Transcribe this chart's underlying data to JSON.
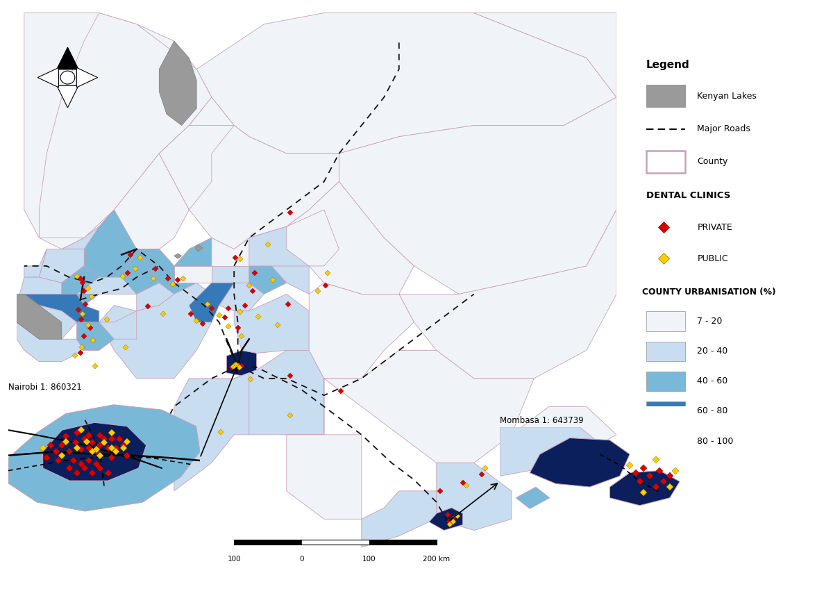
{
  "background_color": "#ffffff",
  "legend": {
    "title": "Legend",
    "kenyan_lakes_color": "#9a9a9a",
    "county_border_color": "#c8a0b8",
    "road_color": "#111111",
    "dental_clinics_header": "DENTAL CLINICS",
    "private_color": "#dd0000",
    "public_color": "#ffcc00",
    "urbanisation_header": "COUNTY URBANISATION (%)",
    "urbanisation_classes": [
      "7 - 20",
      "20 - 40",
      "40 - 60",
      "60 - 80",
      "80 - 100"
    ],
    "urbanisation_colors": [
      "#f0f4f9",
      "#c8ddef",
      "#7ab8d8",
      "#3679b8",
      "#0a1f5c"
    ]
  },
  "nairobi_label": "Nairobi 1: 860321",
  "mombasa_label": "Mombasa 1: 643739"
}
